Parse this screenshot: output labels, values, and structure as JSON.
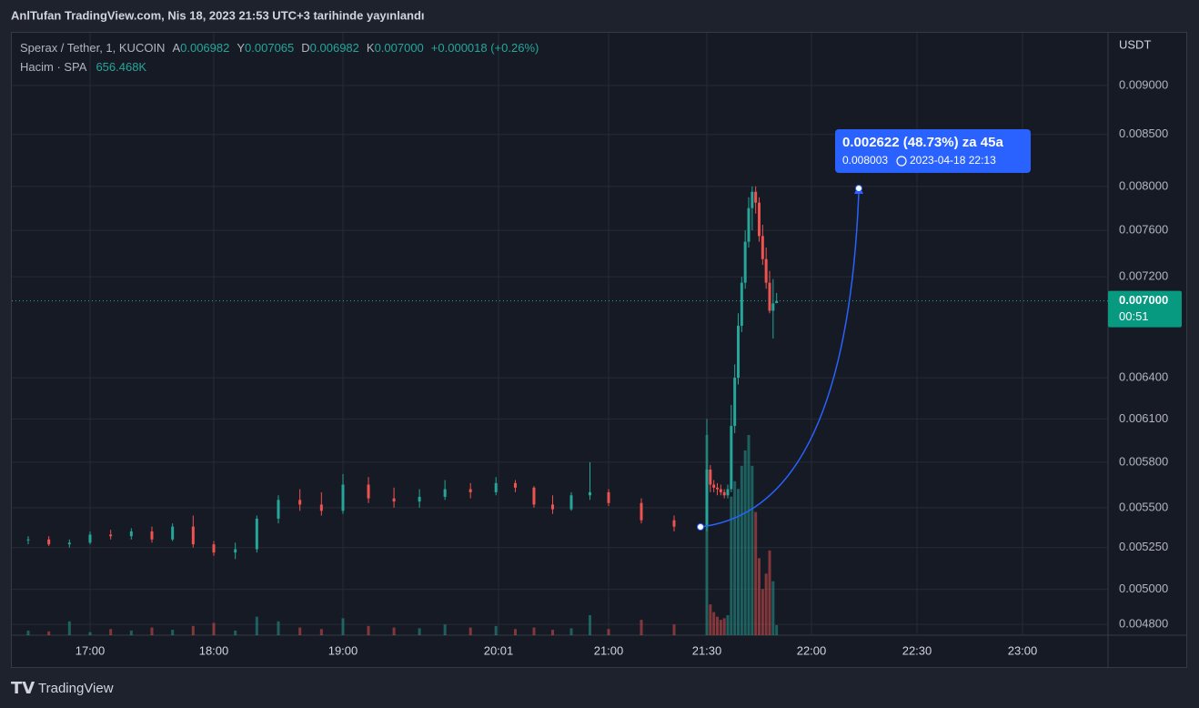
{
  "header": {
    "published": "AnlTufan TradingView.com, Nis 18, 2023 21:53 UTC+3 tarihinde yayınlandı"
  },
  "legend": {
    "symbol": "Sperax / Tether, 1, KUCOIN",
    "open_key": "A",
    "open": "0.006982",
    "high_key": "Y",
    "high": "0.007065",
    "low_key": "D",
    "low": "0.006982",
    "close_key": "K",
    "close": "0.007000",
    "change": "+0.000018 (+0.26%)",
    "volume_key": "Hacim · SPA",
    "volume": "656.468K"
  },
  "price_tag": {
    "price": "0.007000",
    "countdown": "00:51"
  },
  "annotation": {
    "change": "0.002622 (48.73%) za 45a",
    "price": "0.008003",
    "date": "2023-04-18  22:13"
  },
  "footer": {
    "brand": "TradingView"
  },
  "chart_data": {
    "type": "candlestick",
    "y_unit": "USDT",
    "log_scale": true,
    "grid": true,
    "up_color": "#26a69a",
    "down_color": "#ef5350",
    "x": [
      "16:30",
      "16:40",
      "16:50",
      "17:00",
      "17:10",
      "17:20",
      "17:30",
      "17:40",
      "17:50",
      "18:00",
      "18:10",
      "18:20",
      "18:30",
      "18:40",
      "18:50",
      "19:00",
      "19:10",
      "19:20",
      "19:30",
      "19:40",
      "19:50",
      "20:00",
      "20:10",
      "20:20",
      "20:30",
      "20:40",
      "20:50",
      "21:00",
      "21:10",
      "21:20",
      "21:30",
      "21:31",
      "21:32",
      "21:33",
      "21:34",
      "21:35",
      "21:36",
      "21:37",
      "21:38",
      "21:39",
      "21:40",
      "21:41",
      "21:42",
      "21:43",
      "21:44",
      "21:45",
      "21:46",
      "21:47",
      "21:48",
      "21:49",
      "21:50"
    ],
    "open": [
      0.0053,
      0.0053,
      0.00527,
      0.00528,
      0.00533,
      0.00532,
      0.00535,
      0.0053,
      0.00538,
      0.00527,
      0.00522,
      0.00524,
      0.00543,
      0.00555,
      0.00552,
      0.00548,
      0.00565,
      0.00556,
      0.00554,
      0.00557,
      0.00562,
      0.0056,
      0.00566,
      0.00563,
      0.00552,
      0.00549,
      0.00558,
      0.0056,
      0.00553,
      0.00542,
      0.00538,
      0.00575,
      0.00565,
      0.00563,
      0.00562,
      0.0056,
      0.00558,
      0.00562,
      0.00605,
      0.0064,
      0.0068,
      0.00715,
      0.0075,
      0.0078,
      0.00795,
      0.00785,
      0.00755,
      0.00735,
      0.00715,
      0.00692,
      0.006982
    ],
    "high": [
      0.00532,
      0.00532,
      0.0053,
      0.00535,
      0.00536,
      0.00537,
      0.00538,
      0.0054,
      0.00545,
      0.00529,
      0.00528,
      0.00545,
      0.00558,
      0.00562,
      0.0056,
      0.00572,
      0.0057,
      0.00563,
      0.00562,
      0.00568,
      0.00566,
      0.0057,
      0.00568,
      0.00564,
      0.00558,
      0.0056,
      0.0058,
      0.00562,
      0.00556,
      0.00545,
      0.0061,
      0.00578,
      0.00568,
      0.00566,
      0.00565,
      0.00562,
      0.00565,
      0.0062,
      0.0065,
      0.0069,
      0.0072,
      0.0076,
      0.0079,
      0.008,
      0.008,
      0.0079,
      0.00765,
      0.00745,
      0.00725,
      0.00718,
      0.007065
    ],
    "low": [
      0.00527,
      0.00526,
      0.00525,
      0.00527,
      0.0053,
      0.0053,
      0.00528,
      0.00529,
      0.00525,
      0.0052,
      0.00518,
      0.00522,
      0.0054,
      0.00548,
      0.00545,
      0.00546,
      0.00553,
      0.0055,
      0.0055,
      0.00555,
      0.00556,
      0.00558,
      0.0056,
      0.0055,
      0.00546,
      0.00548,
      0.00555,
      0.00551,
      0.0054,
      0.00535,
      0.00535,
      0.0056,
      0.0056,
      0.00558,
      0.00558,
      0.00556,
      0.00556,
      0.0056,
      0.006,
      0.00635,
      0.00675,
      0.0071,
      0.00745,
      0.0076,
      0.00775,
      0.0075,
      0.0073,
      0.0071,
      0.0069,
      0.0067,
      0.006982
    ],
    "close": [
      0.0053,
      0.00527,
      0.00528,
      0.00533,
      0.00532,
      0.00535,
      0.0053,
      0.00538,
      0.00527,
      0.00522,
      0.00524,
      0.00543,
      0.00555,
      0.00552,
      0.00548,
      0.00565,
      0.00556,
      0.00554,
      0.00557,
      0.00562,
      0.0056,
      0.00566,
      0.00563,
      0.00552,
      0.00549,
      0.00558,
      0.0056,
      0.00553,
      0.00542,
      0.00538,
      0.00575,
      0.00565,
      0.00563,
      0.00562,
      0.0056,
      0.00558,
      0.00562,
      0.00605,
      0.0064,
      0.0068,
      0.00715,
      0.0075,
      0.0078,
      0.00795,
      0.00785,
      0.00755,
      0.00735,
      0.00715,
      0.00692,
      0.00698,
      0.007
    ],
    "volume": [
      300000,
      250000,
      900000,
      200000,
      400000,
      300000,
      500000,
      350000,
      600000,
      800000,
      300000,
      1200000,
      900000,
      500000,
      400000,
      1100000,
      600000,
      500000,
      450000,
      700000,
      500000,
      600000,
      400000,
      500000,
      350000,
      450000,
      1300000,
      400000,
      1000000,
      700000,
      13000000,
      2000000,
      1500000,
      1200000,
      1000000,
      1100000,
      1300000,
      9000000,
      10000000,
      9500000,
      11000000,
      12000000,
      13000000,
      11000000,
      8000000,
      5000000,
      3000000,
      4000000,
      5500000,
      3500000,
      656468
    ],
    "ylim": [
      0.00474,
      0.00957
    ],
    "yticks": [
      {
        "value": 0.0048,
        "label": "0.004800"
      },
      {
        "value": 0.005,
        "label": "0.005000"
      },
      {
        "value": 0.00525,
        "label": "0.005250"
      },
      {
        "value": 0.0055,
        "label": "0.005500"
      },
      {
        "value": 0.0058,
        "label": "0.005800"
      },
      {
        "value": 0.0061,
        "label": "0.006100"
      },
      {
        "value": 0.0064,
        "label": "0.006400"
      },
      {
        "value": 0.0072,
        "label": "0.007200"
      },
      {
        "value": 0.0076,
        "label": "0.007600"
      },
      {
        "value": 0.008,
        "label": "0.008000"
      },
      {
        "value": 0.0085,
        "label": "0.008500"
      },
      {
        "value": 0.009,
        "label": "0.009000"
      }
    ],
    "xticks": [
      "17:00",
      "18:00",
      "19:00",
      "20:01",
      "21:00",
      "21:30",
      "22:00",
      "22:30",
      "23:00"
    ]
  }
}
